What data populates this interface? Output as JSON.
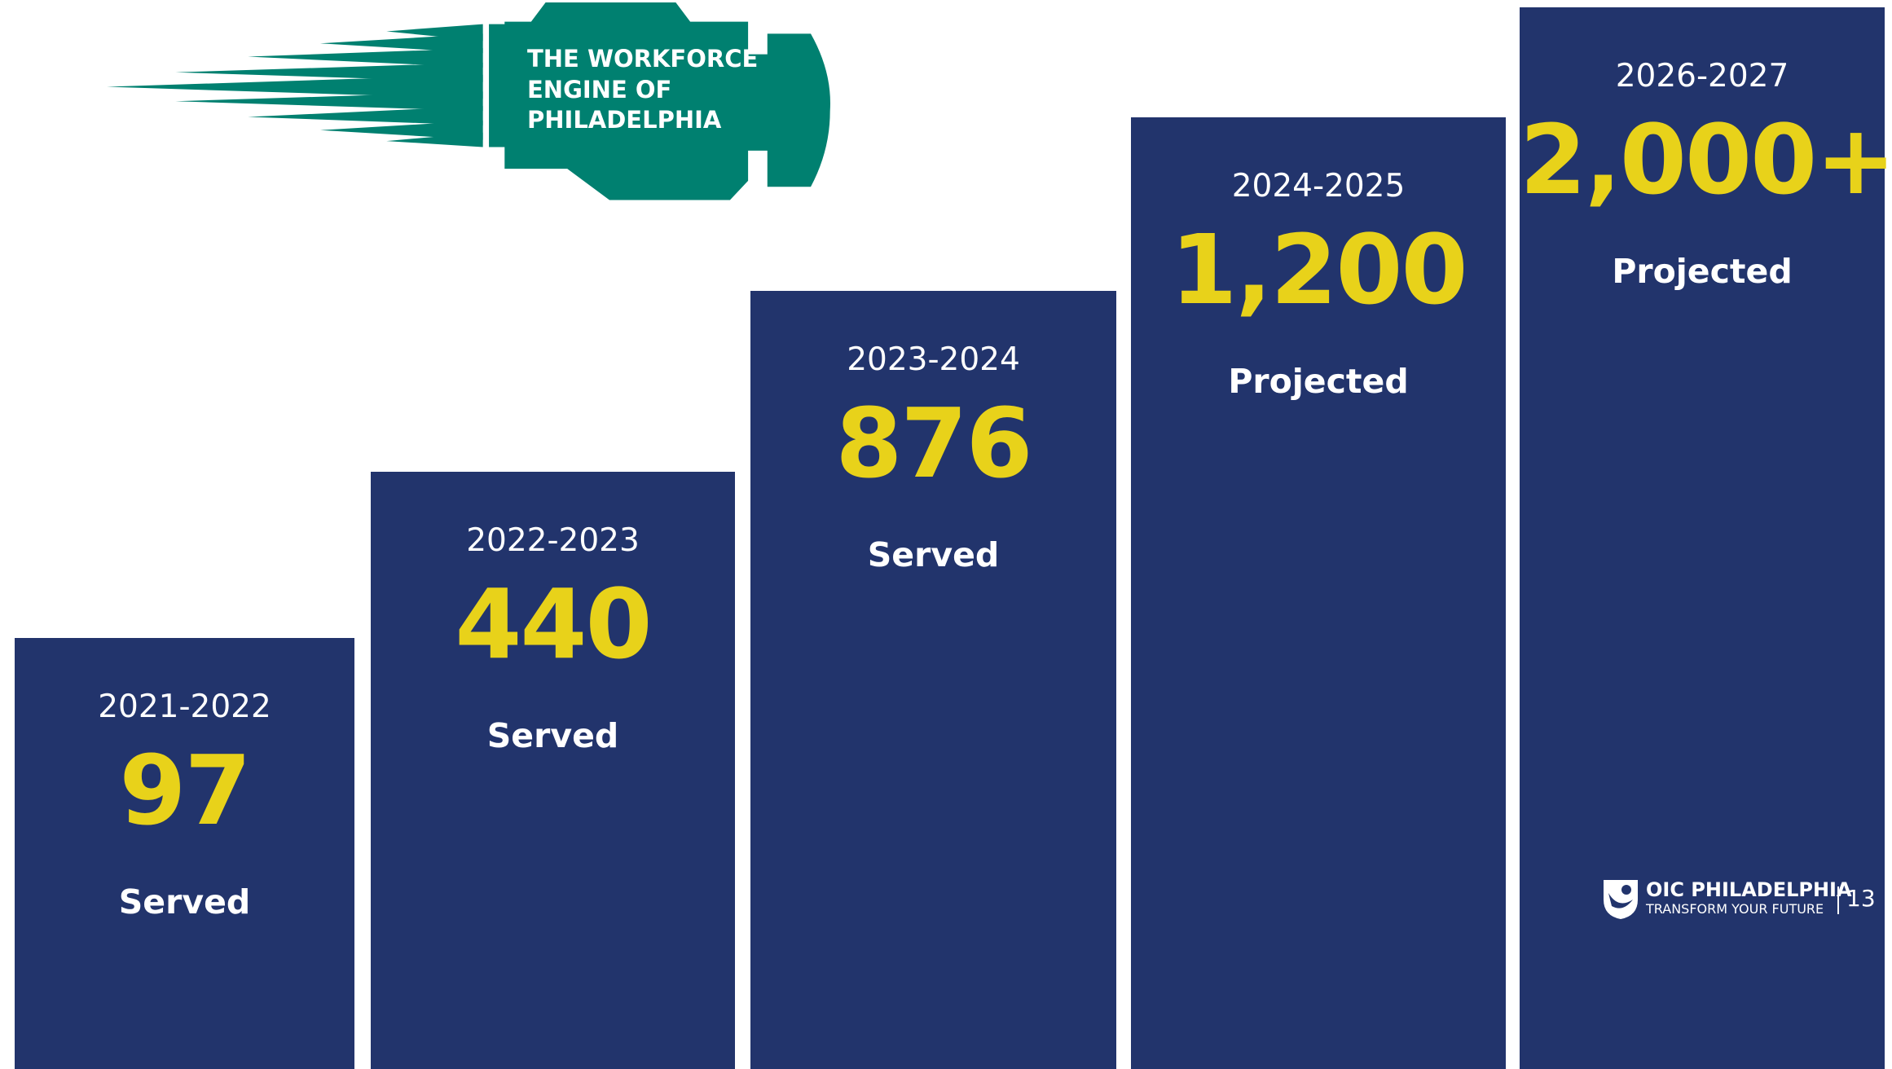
{
  "logo": {
    "lines": [
      "THE WORKFORCE",
      "ENGINE OF",
      "PHILADELPHIA"
    ]
  },
  "columns": [
    {
      "period": "2021-2022",
      "number": "97",
      "label": "Served"
    },
    {
      "period": "2022-2023",
      "number": "440",
      "label": "Served"
    },
    {
      "period": "2023-2024",
      "number": "876",
      "label": "Served"
    },
    {
      "period": "2024-2025",
      "number": "1,200",
      "label": "Projected"
    },
    {
      "period": "2026-2027",
      "number": "2,000+",
      "label": "Projected"
    }
  ],
  "footer": {
    "brand": "OIC PHILADELPHIA",
    "tagline": "TRANSFORM YOUR FUTURE",
    "page": "13"
  }
}
